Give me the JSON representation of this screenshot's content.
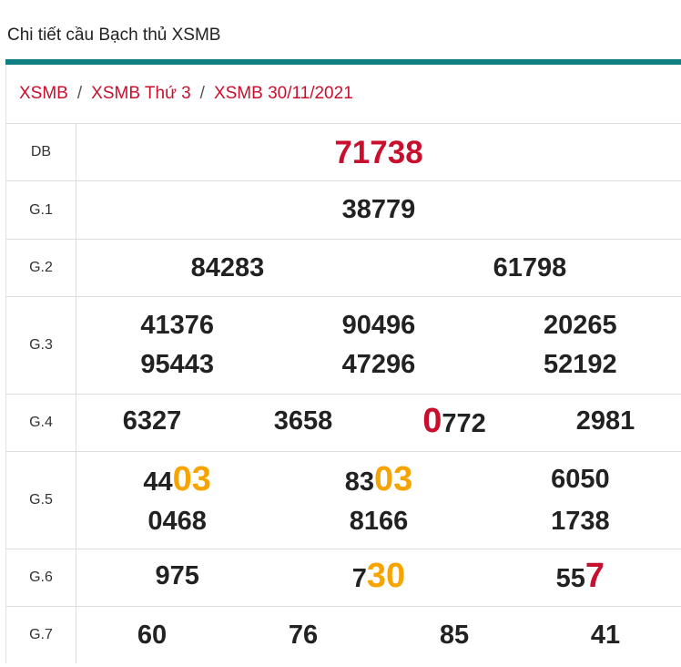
{
  "header": {
    "title": "Chi tiết cầu Bạch thủ XSMB"
  },
  "breadcrumb": {
    "items": [
      "XSMB",
      "XSMB Thứ 3",
      "XSMB 30/11/2021"
    ],
    "separator": "/"
  },
  "table": {
    "rows": [
      {
        "label": "DB",
        "numbers": [
          [
            {
              "text": "71738",
              "color": "#c8102e"
            }
          ]
        ]
      },
      {
        "label": "G.1",
        "numbers": [
          [
            {
              "text": "38779"
            }
          ]
        ]
      },
      {
        "label": "G.2",
        "numbers": [
          [
            {
              "text": "84283"
            }
          ],
          [
            {
              "text": "61798"
            }
          ]
        ]
      },
      {
        "label": "G.3",
        "numbers": [
          [
            {
              "text": "41376"
            }
          ],
          [
            {
              "text": "90496"
            }
          ],
          [
            {
              "text": "20265"
            }
          ],
          [
            {
              "text": "95443"
            }
          ],
          [
            {
              "text": "47296"
            }
          ],
          [
            {
              "text": "52192"
            }
          ]
        ]
      },
      {
        "label": "G.4",
        "numbers": [
          [
            {
              "text": "6327"
            }
          ],
          [
            {
              "text": "3658"
            }
          ],
          [
            {
              "text": "0",
              "color": "#c8102e"
            },
            {
              "text": "772"
            }
          ],
          [
            {
              "text": "2981"
            }
          ]
        ]
      },
      {
        "label": "G.5",
        "numbers": [
          [
            {
              "text": "44"
            },
            {
              "text": "03",
              "color": "#f7a400"
            }
          ],
          [
            {
              "text": "83"
            },
            {
              "text": "03",
              "color": "#f7a400"
            }
          ],
          [
            {
              "text": "6050"
            }
          ],
          [
            {
              "text": "0468"
            }
          ],
          [
            {
              "text": "8166"
            }
          ],
          [
            {
              "text": "1738"
            }
          ]
        ]
      },
      {
        "label": "G.6",
        "numbers": [
          [
            {
              "text": "975"
            }
          ],
          [
            {
              "text": "7"
            },
            {
              "text": "30",
              "color": "#f7a400"
            }
          ],
          [
            {
              "text": "55"
            },
            {
              "text": "7",
              "color": "#c8102e"
            }
          ]
        ]
      },
      {
        "label": "G.7",
        "numbers": [
          [
            {
              "text": "60"
            }
          ],
          [
            {
              "text": "76"
            }
          ],
          [
            {
              "text": "85"
            }
          ],
          [
            {
              "text": "41"
            }
          ]
        ]
      }
    ]
  }
}
